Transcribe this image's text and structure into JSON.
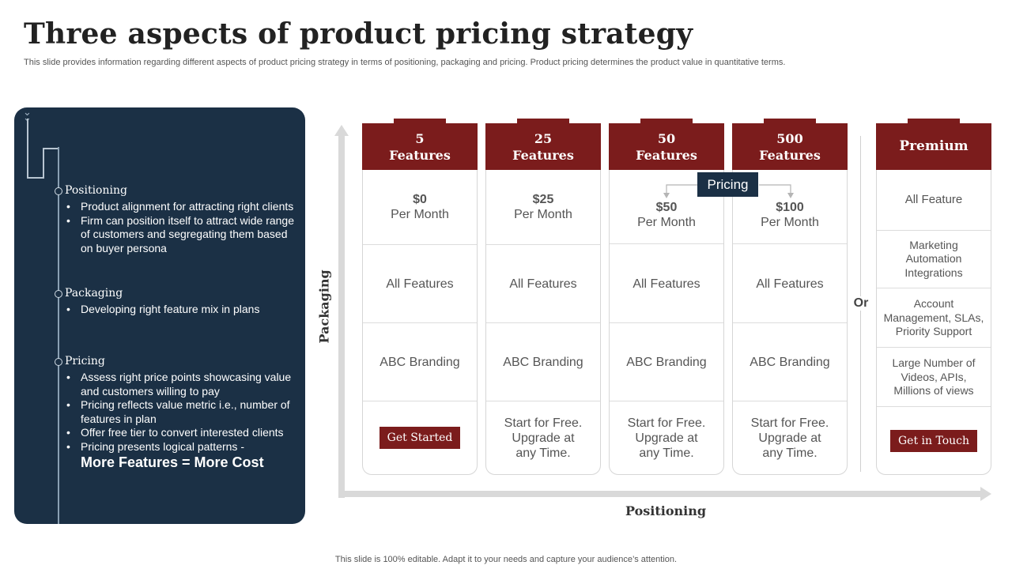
{
  "header": {
    "title": "Three aspects of product pricing strategy",
    "subtitle": "This slide provides information regarding different aspects of product pricing strategy in terms of positioning, packaging and pricing. Product pricing determines the product value in quantitative terms."
  },
  "panel": {
    "sections": [
      {
        "heading": "Positioning",
        "bullets": [
          "Product alignment for attracting right clients",
          "Firm can position itself to attract wide range of customers and segregating them based on buyer persona"
        ]
      },
      {
        "heading": "Packaging",
        "bullets": [
          "Developing right feature mix in plans"
        ]
      },
      {
        "heading": "Pricing",
        "bullets": [
          "Assess right price points showcasing value and customers willing to pay",
          "Pricing reflects value metric i.e., number of features in plan",
          "Offer free tier to convert interested clients",
          "Pricing presents logical patterns -"
        ],
        "emphasis": "More Features = More Cost"
      }
    ]
  },
  "axes": {
    "y_label": "Packaging",
    "x_label": "Positioning"
  },
  "plans": [
    {
      "head_line1": "5",
      "head_line2": "Features",
      "price": "$0",
      "period": "Per Month",
      "features": "All Features",
      "branding": "ABC Branding",
      "cta_button": "Get Started"
    },
    {
      "head_line1": "25",
      "head_line2": "Features",
      "price": "$25",
      "period": "Per Month",
      "features": "All Features",
      "branding": "ABC Branding",
      "cta_line1": "Start for Free.",
      "cta_line2": "Upgrade at",
      "cta_line3": "any Time."
    },
    {
      "head_line1": "50",
      "head_line2": "Features",
      "price": "$50",
      "period": "Per Month",
      "features": "All Features",
      "branding": "ABC Branding",
      "cta_line1": "Start for Free.",
      "cta_line2": "Upgrade at",
      "cta_line3": "any Time."
    },
    {
      "head_line1": "500",
      "head_line2": "Features",
      "price": "$100",
      "period": "Per Month",
      "features": "All Features",
      "branding": "ABC Branding",
      "cta_line1": "Start for Free.",
      "cta_line2": "Upgrade at",
      "cta_line3": "any Time."
    }
  ],
  "pricing_tag": "Pricing",
  "or_label": "Or",
  "premium": {
    "heading": "Premium",
    "rows": [
      "All Feature",
      "Marketing Automation Integrations",
      "Account Management, SLAs, Priority Support",
      "Large Number of Videos, APIs, Millions of views"
    ],
    "cta_button": "Get in Touch"
  },
  "footer": "This slide is 100% editable. Adapt it to your needs and capture your audience’s attention.",
  "colors": {
    "panel_bg": "#1b3045",
    "accent": "#7b1c1c",
    "axis": "#d9d9d9"
  }
}
